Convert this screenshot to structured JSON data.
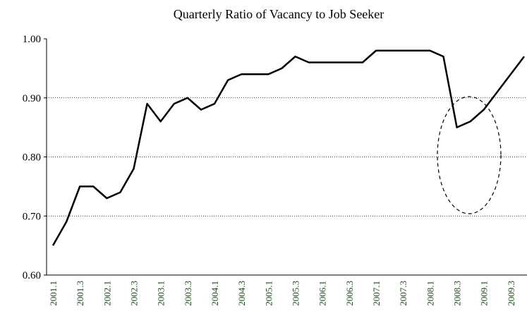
{
  "chart_data": {
    "type": "line",
    "title": "Quarterly Ratio of Vacancy to Job Seeker",
    "categories": [
      "2001.1",
      null,
      "2001.3",
      null,
      "2002.1",
      null,
      "2002.3",
      null,
      "2003.1",
      null,
      "2003.3",
      null,
      "2004.1",
      null,
      "2004.3",
      null,
      "2005.1",
      null,
      "2005.3",
      null,
      "2006.1",
      null,
      "2006.3",
      null,
      "2007.1",
      null,
      "2007.3",
      null,
      "2008.1",
      null,
      "2008.3",
      null,
      "2009.1",
      null,
      "2009.3",
      null
    ],
    "values": [
      0.65,
      0.69,
      0.75,
      0.75,
      0.73,
      0.74,
      0.78,
      0.89,
      0.86,
      0.89,
      0.9,
      0.88,
      0.89,
      0.93,
      0.94,
      0.94,
      0.94,
      0.95,
      0.97,
      0.96,
      0.96,
      0.96,
      0.96,
      0.96,
      0.98,
      0.98,
      0.98,
      0.98,
      0.98,
      0.97,
      0.85,
      0.86,
      0.88,
      0.91,
      0.94,
      0.97
    ],
    "color": "#000000",
    "ylim": [
      0.6,
      1.0
    ],
    "yticks": [
      {
        "value": 0.6,
        "label": "0.60"
      },
      {
        "value": 0.7,
        "label": "0.70"
      },
      {
        "value": 0.8,
        "label": "0.80"
      },
      {
        "value": 0.9,
        "label": "0.90"
      },
      {
        "value": 1.0,
        "label": "1.00"
      }
    ],
    "grid": true
  }
}
